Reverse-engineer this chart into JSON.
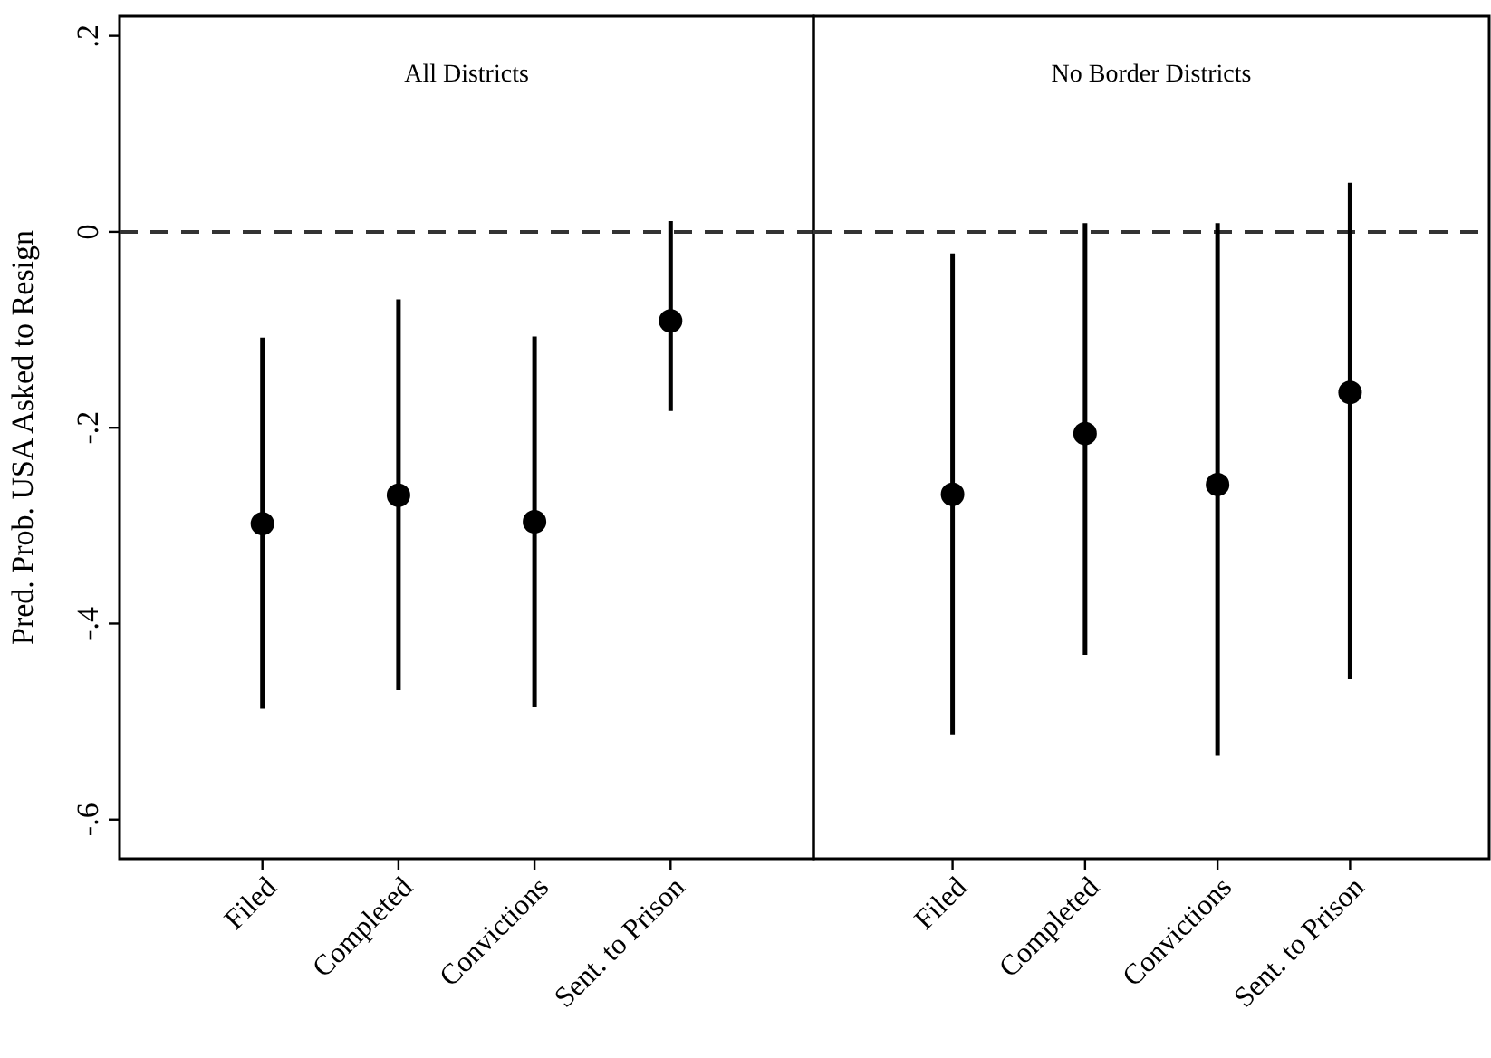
{
  "chart_data": [
    {
      "type": "scatter",
      "title": "All Districts",
      "ylabel": "Pred. Prob. USA Asked to Resign",
      "categories": [
        "Filed",
        "Completed",
        "Convictions",
        "Sent. to Prison"
      ],
      "values": [
        -0.298,
        -0.269,
        -0.296,
        -0.091
      ],
      "errors": [
        [
          -0.487,
          -0.108
        ],
        [
          -0.468,
          -0.069
        ],
        [
          -0.485,
          -0.107
        ],
        [
          -0.183,
          0.011
        ]
      ],
      "color": "#000000",
      "marker": "circle",
      "ylim": [
        -0.64,
        0.22
      ],
      "yticks": [
        {
          "value": 0.2,
          "label": ".2"
        },
        0,
        {
          "value": -0.2,
          "label": "-.2"
        },
        {
          "value": -0.4,
          "label": "-.4"
        },
        {
          "value": -0.6,
          "label": "-.6"
        }
      ],
      "ref_lines": [
        {
          "axis": "y",
          "value": 0,
          "line_style": "dashed",
          "color": "#333333"
        }
      ],
      "grid": false
    },
    {
      "type": "scatter",
      "title": "No Border Districts",
      "categories": [
        "Filed",
        "Completed",
        "Convictions",
        "Sent. to Prison"
      ],
      "values": [
        -0.268,
        -0.206,
        -0.258,
        -0.164
      ],
      "errors": [
        [
          -0.513,
          -0.022
        ],
        [
          -0.432,
          0.009
        ],
        [
          -0.535,
          0.009
        ],
        [
          -0.457,
          0.05
        ]
      ],
      "color": "#000000",
      "marker": "circle",
      "ylim": [
        -0.64,
        0.22
      ],
      "ref_lines": [
        {
          "axis": "y",
          "value": 0,
          "line_style": "dashed",
          "color": "#333333"
        }
      ],
      "grid": false,
      "tick_labels": "x"
    }
  ]
}
